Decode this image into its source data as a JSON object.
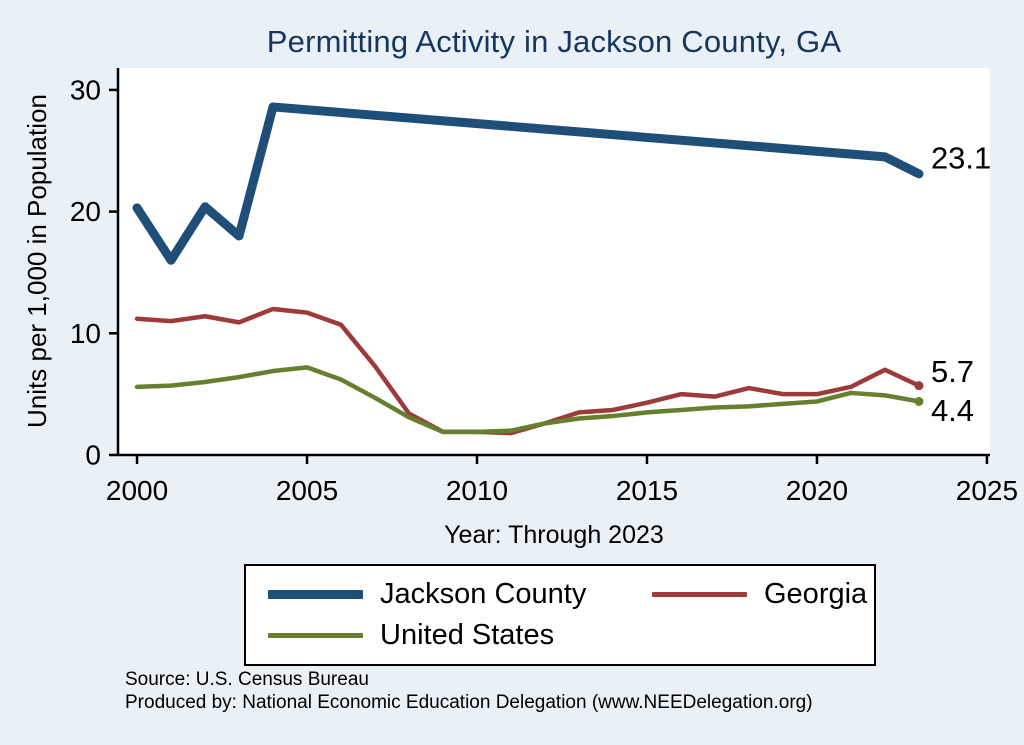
{
  "chart_data": {
    "type": "line",
    "title": "Permitting Activity in Jackson County, GA",
    "xlabel": "Year: Through 2023",
    "ylabel": "Units per 1,000 in Population",
    "xlim": [
      1999.44,
      2025.09
    ],
    "ylim": [
      0,
      31.8
    ],
    "x_ticks": [
      2000,
      2005,
      2010,
      2015,
      2020,
      2025
    ],
    "y_ticks": [
      0,
      10,
      20,
      30
    ],
    "grid": false,
    "legend_position": "bottom",
    "series": [
      {
        "name": "Jackson County",
        "color": "#1f4e79",
        "width": 9,
        "x": [
          2000,
          2001,
          2002,
          2003,
          2004,
          2022,
          2023
        ],
        "y": [
          20.3,
          16.0,
          20.4,
          18.0,
          28.6,
          24.5,
          23.1
        ],
        "end_label": "23.1",
        "label_dy": -16
      },
      {
        "name": "Georgia",
        "color": "#9d3b3b",
        "width": 4.5,
        "x": [
          2000,
          2001,
          2002,
          2003,
          2004,
          2005,
          2006,
          2007,
          2008,
          2009,
          2010,
          2011,
          2012,
          2013,
          2014,
          2015,
          2016,
          2017,
          2018,
          2019,
          2020,
          2021,
          2022,
          2023
        ],
        "y": [
          11.2,
          11.0,
          11.4,
          10.9,
          12.0,
          11.7,
          10.7,
          7.3,
          3.4,
          1.9,
          1.9,
          1.8,
          2.6,
          3.5,
          3.7,
          4.3,
          5.0,
          4.8,
          5.5,
          5.0,
          5.0,
          5.6,
          7.0,
          5.7
        ],
        "end_label": "5.7",
        "label_dy": -14
      },
      {
        "name": "United States",
        "color": "#66802f",
        "width": 4.5,
        "x": [
          2000,
          2001,
          2002,
          2003,
          2004,
          2005,
          2006,
          2007,
          2008,
          2009,
          2010,
          2011,
          2012,
          2013,
          2014,
          2015,
          2016,
          2017,
          2018,
          2019,
          2020,
          2021,
          2022,
          2023
        ],
        "y": [
          5.6,
          5.7,
          6.0,
          6.4,
          6.9,
          7.2,
          6.2,
          4.7,
          3.1,
          1.9,
          1.9,
          2.0,
          2.6,
          3.0,
          3.2,
          3.5,
          3.7,
          3.9,
          4.0,
          4.2,
          4.4,
          5.1,
          4.9,
          4.4
        ],
        "end_label": "4.4",
        "label_dy": 9
      }
    ]
  },
  "footer": {
    "source": "Source: U.S. Census Bureau",
    "produced_by": "Produced by: National Economic Education Delegation (www.NEEDelegation.org)"
  }
}
